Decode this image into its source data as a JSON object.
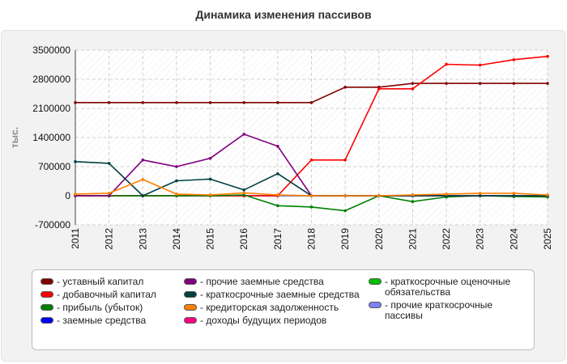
{
  "title": "Динамика изменения пассивов",
  "chart_data": {
    "type": "line",
    "title": "Динамика изменения пассивов",
    "ylabel": "тыс.",
    "xlabel": "",
    "ylim": [
      -700000,
      3500000
    ],
    "yticks": [
      3500000,
      2800000,
      2100000,
      1400000,
      700000,
      0,
      -700000
    ],
    "ytick_labels": [
      "3500000",
      "2800000",
      "2100000",
      "1400000",
      "700000",
      "0",
      "-700000"
    ],
    "categories": [
      "2011",
      "2012",
      "2013",
      "2014",
      "2015",
      "2016",
      "2017",
      "2018",
      "2019",
      "2020",
      "2021",
      "2022",
      "2023",
      "2024",
      "2025"
    ],
    "grid": true,
    "legend_position": "bottom",
    "series": [
      {
        "name": "уставный капитал",
        "color": "#800000",
        "values": [
          2240000,
          2240000,
          2240000,
          2240000,
          2240000,
          2240000,
          2240000,
          2240000,
          2610000,
          2610000,
          2700000,
          2700000,
          2700000,
          2700000,
          2700000
        ]
      },
      {
        "name": "добавочный капитал",
        "color": "#ff0000",
        "values": [
          0,
          0,
          0,
          0,
          0,
          0,
          0,
          860000,
          860000,
          2570000,
          2570000,
          3160000,
          3140000,
          3270000,
          3350000
        ]
      },
      {
        "name": "прибыль (убыток)",
        "color": "#008000",
        "values": [
          0,
          0,
          0,
          0,
          0,
          20000,
          -240000,
          -270000,
          -360000,
          0,
          -140000,
          -30000,
          0,
          -20000,
          -30000
        ]
      },
      {
        "name": "заемные средства",
        "color": "#0000ff",
        "values": [
          0,
          0,
          0,
          0,
          0,
          0,
          0,
          0,
          0,
          0,
          0,
          0,
          0,
          0,
          0
        ]
      },
      {
        "name": "прочие заемные средства",
        "color": "#800080",
        "values": [
          0,
          0,
          860000,
          700000,
          900000,
          1480000,
          1190000,
          0,
          0,
          0,
          0,
          0,
          0,
          0,
          0
        ]
      },
      {
        "name": "краткосрочные заемные средства",
        "color": "#004040",
        "values": [
          820000,
          780000,
          0,
          360000,
          400000,
          140000,
          530000,
          0,
          0,
          0,
          0,
          0,
          0,
          0,
          0
        ]
      },
      {
        "name": "кредиторская задолженность",
        "color": "#ff8000",
        "values": [
          40000,
          60000,
          390000,
          40000,
          20000,
          70000,
          20000,
          0,
          0,
          0,
          20000,
          40000,
          60000,
          60000,
          20000
        ]
      },
      {
        "name": "доходы будущих периодов",
        "color": "#ff0080",
        "values": [
          0,
          0,
          0,
          0,
          0,
          0,
          0,
          0,
          0,
          0,
          0,
          0,
          0,
          0,
          0
        ]
      },
      {
        "name": "краткосрочные оценочные обязательства",
        "color": "#00c000",
        "values": [
          0,
          0,
          0,
          0,
          0,
          0,
          0,
          0,
          0,
          0,
          0,
          0,
          0,
          0,
          0
        ]
      },
      {
        "name": "прочие краткосрочные пассивы",
        "color": "#8080ff",
        "values": [
          0,
          0,
          0,
          0,
          0,
          0,
          0,
          0,
          0,
          0,
          0,
          0,
          0,
          0,
          0
        ]
      }
    ]
  },
  "legend": {
    "columns": [
      [
        "уставный капитал",
        "добавочный капитал",
        "прибыль (убыток)",
        "заемные средства"
      ],
      [
        "прочие заемные средства",
        "краткосрочные заемные средства",
        "кредиторская задолженность",
        "доходы будущих периодов"
      ],
      [
        "краткосрочные оценочные обязательства",
        "прочие краткосрочные пассивы"
      ]
    ]
  }
}
